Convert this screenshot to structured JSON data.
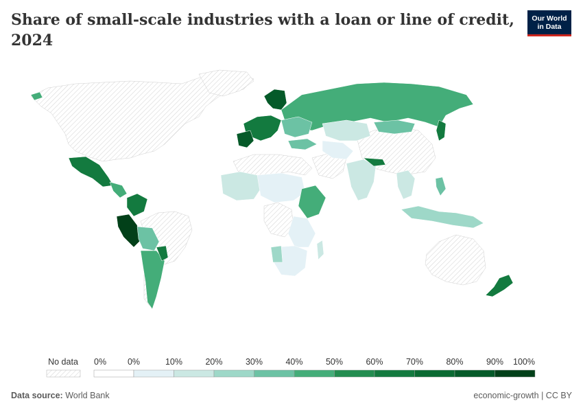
{
  "title": "Share of small-scale industries with a loan or line of credit, 2024",
  "logo": {
    "line1": "Our World",
    "line2": "in Data"
  },
  "footer": {
    "source_label": "Data source:",
    "source_value": "World Bank",
    "license": "economic-growth | CC BY"
  },
  "legend": {
    "no_data_label": "No data",
    "ticks": [
      "0%",
      "0%",
      "10%",
      "20%",
      "30%",
      "40%",
      "50%",
      "60%",
      "70%",
      "80%",
      "90%",
      "100%"
    ],
    "colors": [
      "#ffffff",
      "#e4f1f6",
      "#cbe8e3",
      "#9ed8c8",
      "#6cc2a4",
      "#44ad79",
      "#238d50",
      "#137a3f",
      "#0a6a32",
      "#055a29",
      "#024019"
    ]
  },
  "map_data": {
    "metric": "Share of small-scale industries with a loan or line of credit",
    "year": "2024",
    "colors": {
      "no_data_fill": "#f0f0f0",
      "hatch": "#d3d3d3",
      "border": "#ffffff"
    }
  }
}
